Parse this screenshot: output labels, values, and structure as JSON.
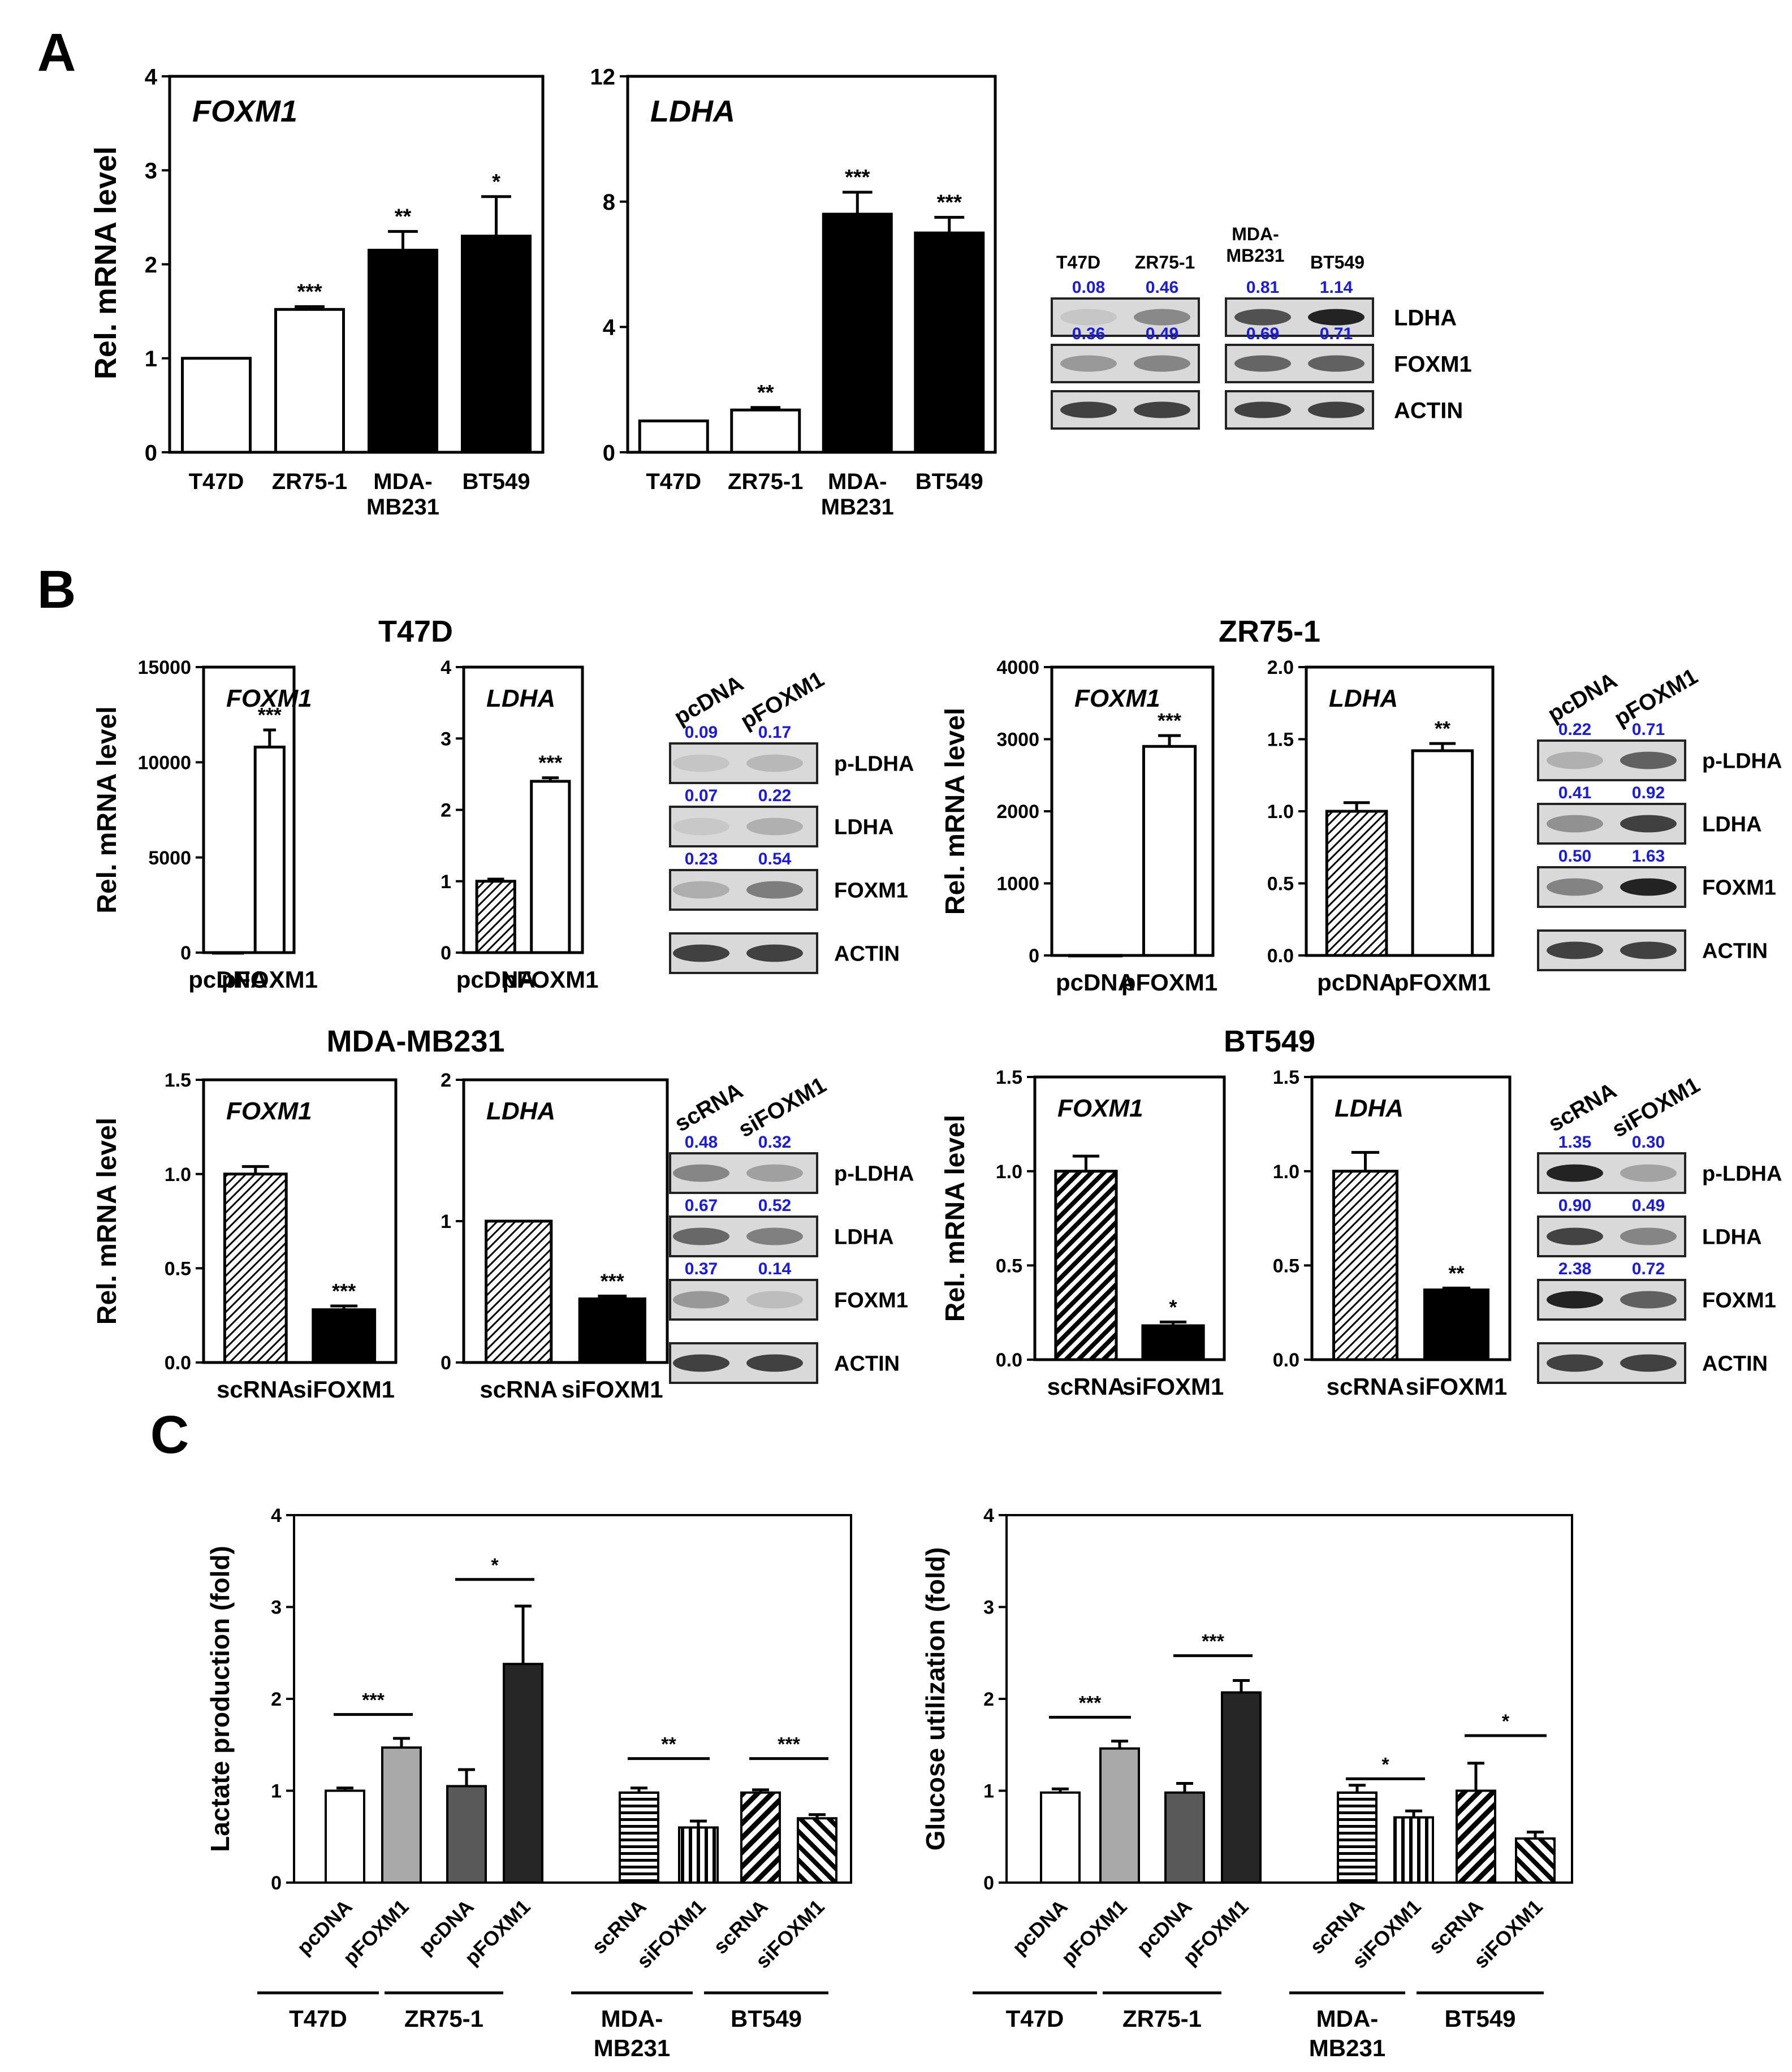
{
  "chart_data": {
    "panels": [
      {
        "id": "A",
        "label": "A",
        "type": "bar",
        "subcharts": [
          {
            "title": "FOXM1",
            "ylabel": "Rel. mRNA level",
            "ylim": [
              0,
              4
            ],
            "yticks": [
              "0",
              "1",
              "2",
              "3",
              "4"
            ],
            "categories": [
              "T47D",
              "ZR75-1",
              "MDA-\nMB231",
              "BT549"
            ],
            "values": [
              1.0,
              1.52,
              2.15,
              2.3
            ],
            "errors": [
              0,
              0.03,
              0.2,
              0.42
            ],
            "significance": [
              "",
              "***",
              "**",
              "*"
            ],
            "fills": [
              "white",
              "white",
              "black",
              "black"
            ]
          },
          {
            "title": "LDHA",
            "ylabel": "",
            "ylim": [
              0,
              12
            ],
            "yticks": [
              "0",
              "4",
              "8",
              "12"
            ],
            "categories": [
              "T47D",
              "ZR75-1",
              "MDA-\nMB231",
              "BT549"
            ],
            "values": [
              1.0,
              1.35,
              7.6,
              7.0
            ],
            "errors": [
              0,
              0.08,
              0.7,
              0.5
            ],
            "significance": [
              "",
              "**",
              "***",
              "***"
            ],
            "fills": [
              "white",
              "white",
              "black",
              "black"
            ]
          }
        ],
        "blot": {
          "lanes": [
            "T47D",
            "ZR75-1",
            "MDA-\nMB231",
            "BT549"
          ],
          "bands": [
            {
              "name": "LDHA",
              "quant": [
                "0.08",
                "0.46",
                "0.81",
                "1.14"
              ]
            },
            {
              "name": "FOXM1",
              "quant": [
                "0.36",
                "0.49",
                "0.69",
                "0.71"
              ]
            },
            {
              "name": "ACTIN",
              "quant": []
            }
          ]
        }
      },
      {
        "id": "B",
        "label": "B",
        "type": "bar",
        "groups": [
          {
            "title": "T47D",
            "ylabel": "Rel. mRNA level",
            "subcharts": [
              {
                "title": "FOXM1",
                "ylim": [
                  0,
                  15000
                ],
                "yticks": [
                  "0",
                  "5000",
                  "10000",
                  "15000"
                ],
                "categories": [
                  "pcDNA",
                  "pFOXM1"
                ],
                "values": [
                  1,
                  10800
                ],
                "errors": [
                  0,
                  900
                ],
                "significance": [
                  "",
                  "***"
                ],
                "fills": [
                  "hatch",
                  "white"
                ]
              },
              {
                "title": "LDHA",
                "ylim": [
                  0,
                  4
                ],
                "yticks": [
                  "0",
                  "1",
                  "2",
                  "3",
                  "4"
                ],
                "categories": [
                  "pcDNA",
                  "pFOXM1"
                ],
                "values": [
                  1.0,
                  2.4
                ],
                "errors": [
                  0.03,
                  0.05
                ],
                "significance": [
                  "",
                  "***"
                ],
                "fills": [
                  "hatch",
                  "white"
                ]
              }
            ],
            "blot": {
              "lanes": [
                "pcDNA",
                "pFOXM1"
              ],
              "bands": [
                {
                  "name": "p-LDHA",
                  "quant": [
                    "0.09",
                    "0.17"
                  ]
                },
                {
                  "name": "LDHA",
                  "quant": [
                    "0.07",
                    "0.22"
                  ]
                },
                {
                  "name": "FOXM1",
                  "quant": [
                    "0.23",
                    "0.54"
                  ]
                },
                {
                  "name": "ACTIN",
                  "quant": []
                }
              ]
            }
          },
          {
            "title": "ZR75-1",
            "ylabel": "Rel. mRNA level",
            "subcharts": [
              {
                "title": "FOXM1",
                "ylim": [
                  0,
                  4000
                ],
                "yticks": [
                  "0",
                  "1000",
                  "2000",
                  "3000",
                  "4000"
                ],
                "categories": [
                  "pcDNA",
                  "pFOXM1"
                ],
                "values": [
                  1,
                  2900
                ],
                "errors": [
                  0,
                  150
                ],
                "significance": [
                  "",
                  "***"
                ],
                "fills": [
                  "white",
                  "white"
                ]
              },
              {
                "title": "LDHA",
                "ylim": [
                  0,
                  2.0
                ],
                "yticks": [
                  "0.0",
                  "0.5",
                  "1.0",
                  "1.5",
                  "2.0"
                ],
                "categories": [
                  "pcDNA",
                  "pFOXM1"
                ],
                "values": [
                  1.0,
                  1.42
                ],
                "errors": [
                  0.06,
                  0.05
                ],
                "significance": [
                  "",
                  "**"
                ],
                "fills": [
                  "hatch",
                  "white"
                ]
              }
            ],
            "blot": {
              "lanes": [
                "pcDNA",
                "pFOXM1"
              ],
              "bands": [
                {
                  "name": "p-LDHA",
                  "quant": [
                    "0.22",
                    "0.71"
                  ]
                },
                {
                  "name": "LDHA",
                  "quant": [
                    "0.41",
                    "0.92"
                  ]
                },
                {
                  "name": "FOXM1",
                  "quant": [
                    "0.50",
                    "1.63"
                  ]
                },
                {
                  "name": "ACTIN",
                  "quant": []
                }
              ]
            }
          },
          {
            "title": "MDA-MB231",
            "ylabel": "Rel. mRNA level",
            "subcharts": [
              {
                "title": "FOXM1",
                "ylim": [
                  0,
                  1.5
                ],
                "yticks": [
                  "0.0",
                  "0.5",
                  "1.0",
                  "1.5"
                ],
                "categories": [
                  "scRNA",
                  "siFOXM1"
                ],
                "values": [
                  1.0,
                  0.28
                ],
                "errors": [
                  0.04,
                  0.02
                ],
                "significance": [
                  "",
                  "***"
                ],
                "fills": [
                  "hatch",
                  "black"
                ]
              },
              {
                "title": "LDHA",
                "ylim": [
                  0,
                  2
                ],
                "yticks": [
                  "0",
                  "1",
                  "2"
                ],
                "categories": [
                  "scRNA",
                  "siFOXM1"
                ],
                "values": [
                  1.0,
                  0.45
                ],
                "errors": [
                  0,
                  0.02
                ],
                "significance": [
                  "",
                  "***"
                ],
                "fills": [
                  "hatch",
                  "black"
                ]
              }
            ],
            "blot": {
              "lanes": [
                "scRNA",
                "siFOXM1"
              ],
              "bands": [
                {
                  "name": "p-LDHA",
                  "quant": [
                    "0.48",
                    "0.32"
                  ]
                },
                {
                  "name": "LDHA",
                  "quant": [
                    "0.67",
                    "0.52"
                  ]
                },
                {
                  "name": "FOXM1",
                  "quant": [
                    "0.37",
                    "0.14"
                  ]
                },
                {
                  "name": "ACTIN",
                  "quant": []
                }
              ]
            }
          },
          {
            "title": "BT549",
            "ylabel": "Rel. mRNA level",
            "subcharts": [
              {
                "title": "FOXM1",
                "ylim": [
                  0,
                  1.5
                ],
                "yticks": [
                  "0.0",
                  "0.5",
                  "1.0",
                  "1.5"
                ],
                "categories": [
                  "scRNA",
                  "siFOXM1"
                ],
                "values": [
                  1.0,
                  0.18
                ],
                "errors": [
                  0.08,
                  0.02
                ],
                "significance": [
                  "",
                  "*"
                ],
                "fills": [
                  "hatch-bold",
                  "black"
                ]
              },
              {
                "title": "LDHA",
                "ylim": [
                  0,
                  1.5
                ],
                "yticks": [
                  "0.0",
                  "0.5",
                  "1.0",
                  "1.5"
                ],
                "categories": [
                  "scRNA",
                  "siFOXM1"
                ],
                "values": [
                  1.0,
                  0.37
                ],
                "errors": [
                  0.1,
                  0.01
                ],
                "significance": [
                  "",
                  "**"
                ],
                "fills": [
                  "hatch",
                  "black"
                ]
              }
            ],
            "blot": {
              "lanes": [
                "scRNA",
                "siFOXM1"
              ],
              "bands": [
                {
                  "name": "p-LDHA",
                  "quant": [
                    "1.35",
                    "0.30"
                  ]
                },
                {
                  "name": "LDHA",
                  "quant": [
                    "0.90",
                    "0.49"
                  ]
                },
                {
                  "name": "FOXM1",
                  "quant": [
                    "2.38",
                    "0.72"
                  ]
                },
                {
                  "name": "ACTIN",
                  "quant": []
                }
              ]
            }
          }
        ]
      },
      {
        "id": "C",
        "label": "C",
        "type": "bar",
        "subcharts": [
          {
            "ylabel": "Lactate production (fold)",
            "ylim": [
              0,
              4
            ],
            "yticks": [
              "0",
              "1",
              "2",
              "3",
              "4"
            ],
            "categories": [
              "pcDNA",
              "pFOXM1",
              "pcDNA",
              "pFOXM1",
              "scRNA",
              "siFOXM1",
              "scRNA",
              "siFOXM1"
            ],
            "values": [
              1.0,
              1.47,
              1.05,
              2.38,
              0.98,
              0.6,
              0.98,
              0.7
            ],
            "errors": [
              0.03,
              0.1,
              0.18,
              0.63,
              0.05,
              0.07,
              0.03,
              0.04
            ],
            "styles": [
              "white",
              "grey",
              "darkgrey",
              "nearblack",
              "hstripe",
              "vstripe",
              "diag-bold",
              "diag"
            ],
            "cell_lines": [
              "T47D",
              "ZR75-1",
              "MDA-\nMB231",
              "BT549"
            ],
            "comparisons": [
              {
                "pair": [
                  0,
                  1
                ],
                "mark": "***",
                "y": 1.83
              },
              {
                "pair": [
                  2,
                  3
                ],
                "mark": "*",
                "y": 3.3
              },
              {
                "pair": [
                  4,
                  5
                ],
                "mark": "**",
                "y": 1.35
              },
              {
                "pair": [
                  6,
                  7
                ],
                "mark": "***",
                "y": 1.35
              }
            ]
          },
          {
            "ylabel": "Glucose utilization (fold)",
            "ylim": [
              0,
              4
            ],
            "yticks": [
              "0",
              "1",
              "2",
              "3",
              "4"
            ],
            "categories": [
              "pcDNA",
              "pFOXM1",
              "pcDNA",
              "pFOXM1",
              "scRNA",
              "siFOXM1",
              "scRNA",
              "siFOXM1"
            ],
            "values": [
              0.98,
              1.46,
              0.98,
              2.07,
              0.98,
              0.71,
              1.0,
              0.48
            ],
            "errors": [
              0.04,
              0.08,
              0.1,
              0.13,
              0.08,
              0.07,
              0.3,
              0.07
            ],
            "styles": [
              "white",
              "grey",
              "darkgrey",
              "nearblack",
              "hstripe",
              "vstripe",
              "diag-bold",
              "diag"
            ],
            "cell_lines": [
              "T47D",
              "ZR75-1",
              "MDA-\nMB231",
              "BT549"
            ],
            "comparisons": [
              {
                "pair": [
                  0,
                  1
                ],
                "mark": "***",
                "y": 1.8
              },
              {
                "pair": [
                  2,
                  3
                ],
                "mark": "***",
                "y": 2.47
              },
              {
                "pair": [
                  4,
                  5
                ],
                "mark": "*",
                "y": 1.13
              },
              {
                "pair": [
                  6,
                  7
                ],
                "mark": "*",
                "y": 1.6
              }
            ]
          }
        ]
      }
    ]
  },
  "colors": {
    "quant": "#1a1ae6",
    "axis": "#000000",
    "grey": "#a9a9a9",
    "darkgrey": "#595959",
    "nearblack": "#262626"
  }
}
